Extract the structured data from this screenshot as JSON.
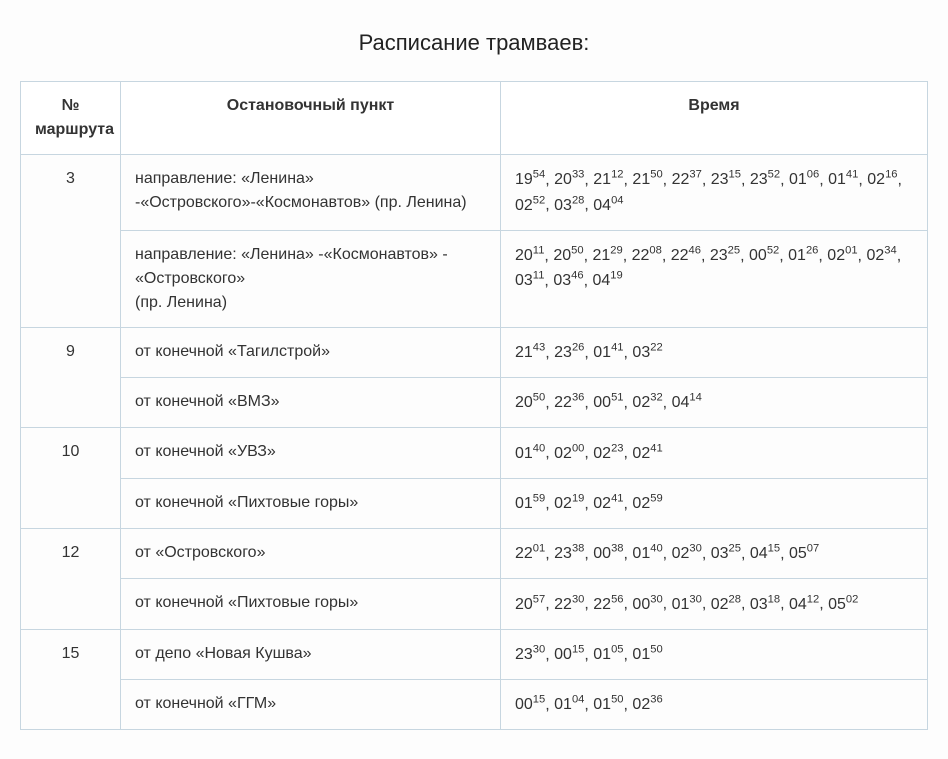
{
  "title": "Расписание трамваев:",
  "columns": [
    "№ маршрута",
    "Остановочный пункт",
    "Время"
  ],
  "rows": [
    {
      "route": "3",
      "route_rowspan": 2,
      "stop": "направление: «Ленина» -«Островского»-«Космонавтов» (пр. Ленина)",
      "times": [
        {
          "h": "19",
          "m": "54"
        },
        {
          "h": "20",
          "m": "33"
        },
        {
          "h": "21",
          "m": "12"
        },
        {
          "h": "21",
          "m": "50"
        },
        {
          "h": "22",
          "m": "37"
        },
        {
          "h": "23",
          "m": "15"
        },
        {
          "h": "23",
          "m": "52"
        },
        {
          "h": "01",
          "m": "06"
        },
        {
          "h": "01",
          "m": "41"
        },
        {
          "h": "02",
          "m": "16"
        },
        {
          "h": "02",
          "m": "52"
        },
        {
          "h": "03",
          "m": "28"
        },
        {
          "h": "04",
          "m": "04"
        }
      ]
    },
    {
      "stop": "направление: «Ленина» -«Космонавтов» - «Островского»\n(пр. Ленина)",
      "times": [
        {
          "h": "20",
          "m": "11"
        },
        {
          "h": "20",
          "m": "50"
        },
        {
          "h": "21",
          "m": "29"
        },
        {
          "h": "22",
          "m": "08"
        },
        {
          "h": "22",
          "m": "46"
        },
        {
          "h": "23",
          "m": "25"
        },
        {
          "h": "00",
          "m": "52"
        },
        {
          "h": "01",
          "m": "26"
        },
        {
          "h": "02",
          "m": "01"
        },
        {
          "h": "02",
          "m": "34"
        },
        {
          "h": "03",
          "m": "11"
        },
        {
          "h": "03",
          "m": "46"
        },
        {
          "h": "04",
          "m": "19"
        }
      ]
    },
    {
      "route": "9",
      "route_rowspan": 2,
      "stop": "от конечной «Тагилстрой»",
      "times": [
        {
          "h": "21",
          "m": "43"
        },
        {
          "h": "23",
          "m": "26"
        },
        {
          "h": "01",
          "m": "41"
        },
        {
          "h": "03",
          "m": "22"
        }
      ]
    },
    {
      "stop": "от конечной «ВМЗ»",
      "times": [
        {
          "h": "20",
          "m": "50"
        },
        {
          "h": "22",
          "m": "36"
        },
        {
          "h": "00",
          "m": "51"
        },
        {
          "h": "02",
          "m": "32"
        },
        {
          "h": "04",
          "m": "14"
        }
      ]
    },
    {
      "route": "10",
      "route_rowspan": 2,
      "stop": "от конечной «УВЗ»",
      "times": [
        {
          "h": "01",
          "m": "40"
        },
        {
          "h": "02",
          "m": "00"
        },
        {
          "h": "02",
          "m": "23"
        },
        {
          "h": "02",
          "m": "41"
        }
      ]
    },
    {
      "stop": "от конечной «Пихтовые горы»",
      "times": [
        {
          "h": "01",
          "m": "59"
        },
        {
          "h": "02",
          "m": "19"
        },
        {
          "h": "02",
          "m": "41"
        },
        {
          "h": "02",
          "m": "59"
        }
      ]
    },
    {
      "route": "12",
      "route_rowspan": 2,
      "stop": "от «Островского»",
      "times": [
        {
          "h": "22",
          "m": "01"
        },
        {
          "h": "23",
          "m": "38"
        },
        {
          "h": "00",
          "m": "38"
        },
        {
          "h": "01",
          "m": "40"
        },
        {
          "h": "02",
          "m": "30"
        },
        {
          "h": "03",
          "m": "25"
        },
        {
          "h": "04",
          "m": "15"
        },
        {
          "h": "05",
          "m": "07"
        }
      ]
    },
    {
      "stop": "от конечной «Пихтовые горы»",
      "times": [
        {
          "h": "20",
          "m": "57"
        },
        {
          "h": "22",
          "m": "30"
        },
        {
          "h": "22",
          "m": "56"
        },
        {
          "h": "00",
          "m": "30"
        },
        {
          "h": "01",
          "m": "30"
        },
        {
          "h": "02",
          "m": "28"
        },
        {
          "h": "03",
          "m": "18"
        },
        {
          "h": "04",
          "m": "12"
        },
        {
          "h": "05",
          "m": "02"
        }
      ]
    },
    {
      "route": "15",
      "route_rowspan": 2,
      "stop": "от депо «Новая Кушва»",
      "times": [
        {
          "h": "23",
          "m": "30"
        },
        {
          "h": "00",
          "m": "15"
        },
        {
          "h": "01",
          "m": "05"
        },
        {
          "h": "01",
          "m": "50"
        }
      ]
    },
    {
      "stop": "от конечной «ГГМ»",
      "times": [
        {
          "h": "00",
          "m": "15"
        },
        {
          "h": "01",
          "m": "04"
        },
        {
          "h": "01",
          "m": "50"
        },
        {
          "h": "02",
          "m": "36"
        }
      ]
    }
  ]
}
